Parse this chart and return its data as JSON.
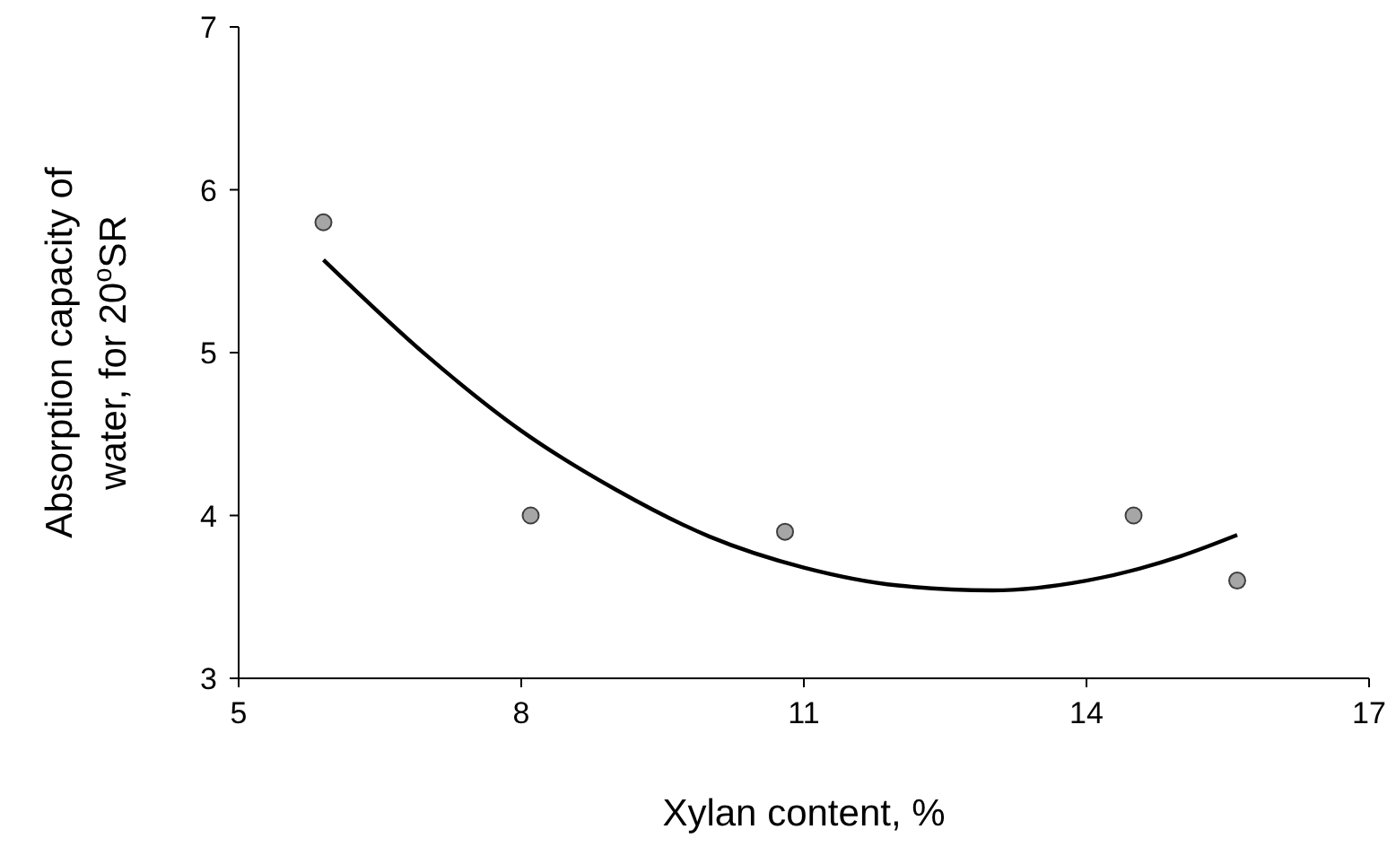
{
  "chart_data": {
    "type": "scatter",
    "xlabel": "Xylan content, %",
    "ylabel": "Absorption capacity of\nwater, for  20$^{o}$SR",
    "xlim": [
      5,
      17
    ],
    "xticks": [
      5,
      8,
      11,
      14,
      17
    ],
    "ylim": [
      3,
      7
    ],
    "yticks": [
      3,
      4,
      5,
      6,
      7
    ],
    "grid": false,
    "marker": "circle",
    "series": [
      {
        "color": "#a6a6a6",
        "x": [
          5.9,
          8.1,
          10.8,
          14.5,
          15.6
        ],
        "values": [
          5.8,
          4.0,
          3.9,
          4.0,
          3.6
        ]
      },
      {
        "type": "line",
        "color": "#000000",
        "marker": "none",
        "x": [
          5.9,
          7,
          8,
          9,
          10,
          11,
          12,
          13,
          14,
          15,
          15.6
        ],
        "values": [
          5.57,
          4.98,
          4.52,
          4.16,
          3.87,
          3.68,
          3.57,
          3.54,
          3.6,
          3.75,
          3.88
        ]
      }
    ]
  }
}
